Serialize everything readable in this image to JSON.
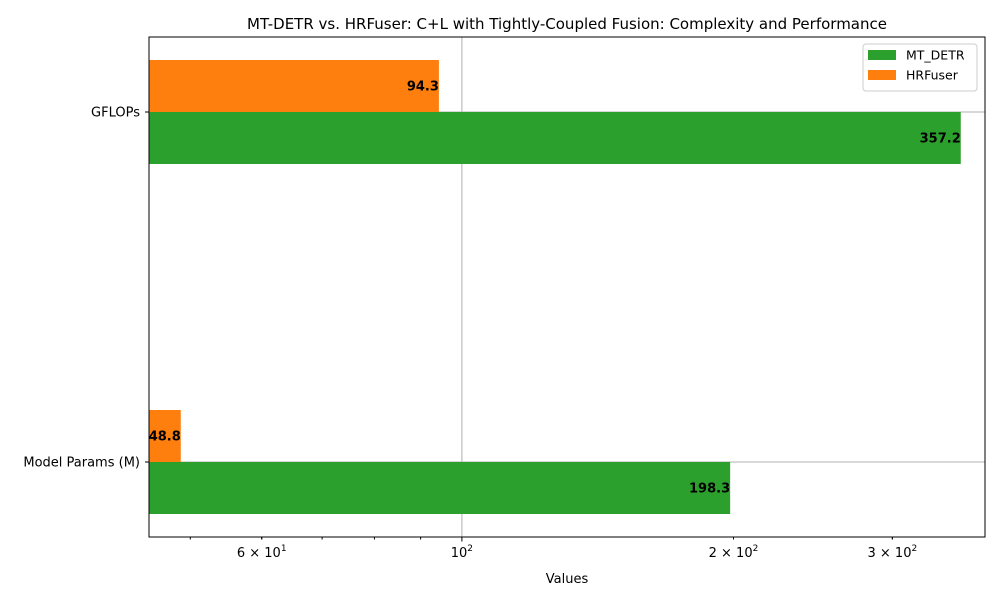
{
  "chart_data": {
    "type": "bar",
    "orientation": "horizontal",
    "title": "MT-DETR vs. HRFuser: C+L with Tightly-Coupled Fusion: Complexity and Performance",
    "xlabel": "Values",
    "ylabel": "",
    "x_scale": "log",
    "xlim": [
      45,
      380
    ],
    "grid": true,
    "legend_position": "top-right",
    "categories": [
      "GFLOPs",
      "Model Params (M)"
    ],
    "series": [
      {
        "name": "MT_DETR",
        "color": "#2ca02c",
        "values": [
          357.2,
          198.3
        ],
        "labels": [
          "357.2",
          "198.3"
        ]
      },
      {
        "name": "HRFuser",
        "color": "#ff7f0e",
        "values": [
          94.3,
          48.8
        ],
        "labels": [
          "94.3",
          "48.8"
        ]
      }
    ],
    "x_ticks": [
      {
        "value": 60,
        "base": "6 × 10",
        "exp": "1"
      },
      {
        "value": 100,
        "base": "10",
        "exp": "2"
      },
      {
        "value": 200,
        "base": "2 × 10",
        "exp": "2"
      },
      {
        "value": 300,
        "base": "3 × 10",
        "exp": "2"
      }
    ]
  }
}
